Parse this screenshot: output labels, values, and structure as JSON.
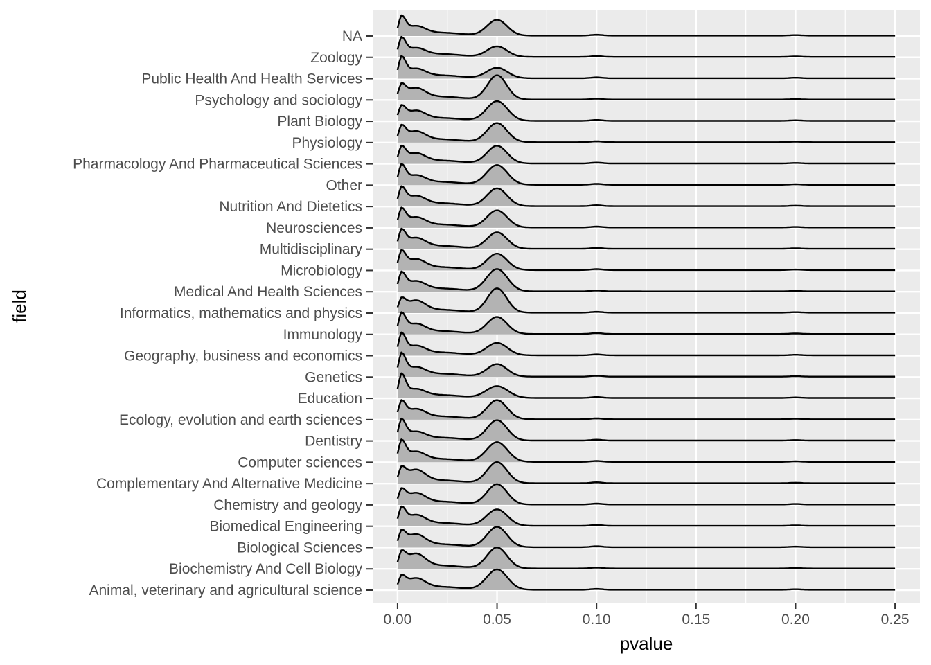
{
  "chart_data": {
    "type": "ridgeline",
    "xlabel": "pvalue",
    "ylabel": "field",
    "xlim": [
      -0.0125,
      0.2625
    ],
    "x_ticks": [
      0.0,
      0.05,
      0.1,
      0.15,
      0.2,
      0.25
    ],
    "x_tick_labels": [
      "0.00",
      "0.05",
      "0.10",
      "0.15",
      "0.20",
      "0.25"
    ],
    "x_minor_ticks": [
      0.025,
      0.075,
      0.125,
      0.175,
      0.225
    ],
    "grid": true,
    "fill_color": "#b3b3b3",
    "line_color": "#000000",
    "panel_background": "#ebebeb",
    "categories": [
      "Animal, veterinary and agricultural science",
      "Biochemistry And Cell Biology",
      "Biological Sciences",
      "Biomedical Engineering",
      "Chemistry and geology",
      "Complementary And Alternative Medicine",
      "Computer sciences",
      "Dentistry",
      "Ecology, evolution and earth sciences",
      "Education",
      "Genetics",
      "Geography, business and economics",
      "Immunology",
      "Informatics, mathematics and physics",
      "Medical And Health Sciences",
      "Microbiology",
      "Multidisciplinary",
      "Neurosciences",
      "Nutrition And Dietetics",
      "Other",
      "Pharmacology And Pharmaceutical Sciences",
      "Physiology",
      "Plant Biology",
      "Psychology and sociology",
      "Public Health And Health Services",
      "Zoology",
      "NA"
    ],
    "series": [
      {
        "a": 0.85,
        "b": 0.8,
        "p": 1.55,
        "s": 0.0052
      },
      {
        "a": 1.0,
        "b": 1.05,
        "p": 1.6,
        "s": 0.005
      },
      {
        "a": 1.0,
        "b": 0.9,
        "p": 1.55,
        "s": 0.005
      },
      {
        "a": 1.2,
        "b": 0.75,
        "p": 1.25,
        "s": 0.0052
      },
      {
        "a": 0.95,
        "b": 0.8,
        "p": 1.55,
        "s": 0.005
      },
      {
        "a": 0.95,
        "b": 0.95,
        "p": 1.6,
        "s": 0.005
      },
      {
        "a": 1.45,
        "b": 0.7,
        "p": 1.5,
        "s": 0.0052
      },
      {
        "a": 1.45,
        "b": 0.6,
        "p": 1.55,
        "s": 0.005
      },
      {
        "a": 1.2,
        "b": 0.7,
        "p": 1.45,
        "s": 0.005
      },
      {
        "a": 1.65,
        "b": 0.6,
        "p": 0.9,
        "s": 0.0055
      },
      {
        "a": 1.6,
        "b": 0.65,
        "p": 0.95,
        "s": 0.005
      },
      {
        "a": 1.5,
        "b": 0.65,
        "p": 0.95,
        "s": 0.0052
      },
      {
        "a": 1.4,
        "b": 0.7,
        "p": 1.3,
        "s": 0.005
      },
      {
        "a": 0.85,
        "b": 0.85,
        "p": 1.85,
        "s": 0.0048
      },
      {
        "a": 1.25,
        "b": 0.7,
        "p": 1.7,
        "s": 0.0052
      },
      {
        "a": 1.25,
        "b": 0.75,
        "p": 1.25,
        "s": 0.005
      },
      {
        "a": 1.25,
        "b": 0.75,
        "p": 1.25,
        "s": 0.005
      },
      {
        "a": 1.25,
        "b": 0.7,
        "p": 1.3,
        "s": 0.005
      },
      {
        "a": 1.25,
        "b": 0.7,
        "p": 1.35,
        "s": 0.005
      },
      {
        "a": 1.35,
        "b": 0.65,
        "p": 1.5,
        "s": 0.0052
      },
      {
        "a": 1.1,
        "b": 0.7,
        "p": 1.35,
        "s": 0.005
      },
      {
        "a": 1.05,
        "b": 0.75,
        "p": 1.45,
        "s": 0.005
      },
      {
        "a": 0.95,
        "b": 0.7,
        "p": 1.5,
        "s": 0.0052
      },
      {
        "a": 0.95,
        "b": 0.8,
        "p": 1.85,
        "s": 0.0048
      },
      {
        "a": 1.45,
        "b": 0.65,
        "p": 0.8,
        "s": 0.0052
      },
      {
        "a": 1.3,
        "b": 0.6,
        "p": 0.8,
        "s": 0.005
      },
      {
        "a": 1.3,
        "b": 0.65,
        "p": 1.2,
        "s": 0.005
      }
    ]
  }
}
